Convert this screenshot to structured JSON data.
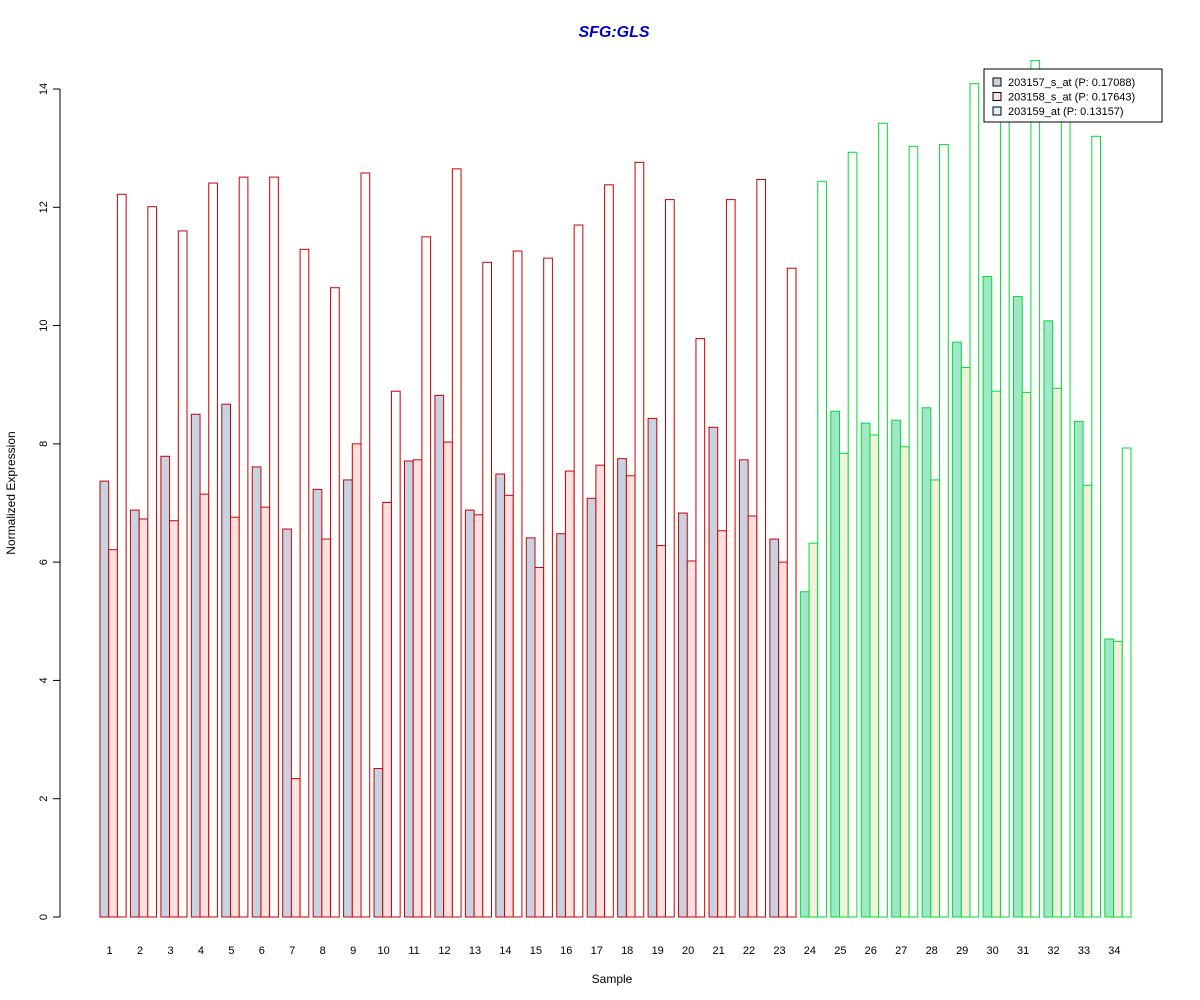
{
  "chart_data": {
    "type": "bar",
    "title": "SFG:GLS",
    "title_color": "#0000cc",
    "xlabel": "Sample",
    "ylabel": "Normalized Expression",
    "ylim": [
      0,
      14
    ],
    "yticks": [
      0,
      2,
      4,
      6,
      8,
      10,
      12,
      14
    ],
    "grid": false,
    "legend_position": "top-right",
    "categories": [
      "1",
      "2",
      "3",
      "4",
      "5",
      "6",
      "7",
      "8",
      "9",
      "10",
      "11",
      "12",
      "13",
      "14",
      "15",
      "16",
      "17",
      "18",
      "19",
      "20",
      "21",
      "22",
      "23",
      "24",
      "25",
      "26",
      "27",
      "28",
      "29",
      "30",
      "31",
      "32",
      "33",
      "34"
    ],
    "group_colors": {
      "red_group": {
        "samples": "1-23",
        "border": "#cc0000"
      },
      "green_group": {
        "samples": "24-34",
        "border": "#00dd33"
      }
    },
    "series": [
      {
        "name": "203157_s_at (P: 0.17088)",
        "fill_red_group": "#c6d3e3",
        "fill_green_group": "#a0e6c8",
        "legend_fill": "#c6d3e3",
        "values": [
          7.37,
          6.88,
          7.79,
          8.5,
          8.67,
          7.61,
          6.56,
          7.23,
          7.39,
          2.51,
          7.71,
          8.82,
          6.88,
          7.49,
          6.41,
          6.48,
          7.08,
          7.75,
          8.43,
          6.83,
          8.28,
          7.73,
          6.39,
          5.5,
          8.55,
          8.35,
          8.4,
          8.61,
          9.72,
          10.83,
          10.49,
          10.08,
          8.38,
          4.7
        ]
      },
      {
        "name": "203158_s_at (P: 0.17643)",
        "fill_red_group": "#ffe0e0",
        "fill_green_group": "#f2f2dc",
        "legend_fill": "#ffe0e0",
        "values": [
          6.21,
          6.73,
          6.7,
          7.15,
          6.76,
          6.93,
          2.34,
          6.39,
          8.0,
          7.01,
          7.73,
          8.03,
          6.8,
          7.13,
          5.91,
          7.54,
          7.64,
          7.46,
          6.28,
          6.02,
          6.53,
          6.78,
          6.0,
          6.32,
          7.84,
          8.15,
          7.95,
          7.39,
          9.29,
          8.89,
          8.87,
          8.94,
          7.3,
          4.66
        ]
      },
      {
        "name": "203159_at (P: 0.13157)",
        "fill_red_group": "#ffffff",
        "fill_green_group": "#ffffff",
        "legend_fill": "#ddeeff",
        "values": [
          12.22,
          12.01,
          11.6,
          12.41,
          12.51,
          12.51,
          11.29,
          10.64,
          12.58,
          8.89,
          11.5,
          12.65,
          11.07,
          11.26,
          11.14,
          11.7,
          12.38,
          12.76,
          12.13,
          9.78,
          12.13,
          12.47,
          10.97,
          12.44,
          12.93,
          13.42,
          13.03,
          13.06,
          14.09,
          13.83,
          14.48,
          13.89,
          13.2,
          7.93
        ]
      }
    ]
  }
}
